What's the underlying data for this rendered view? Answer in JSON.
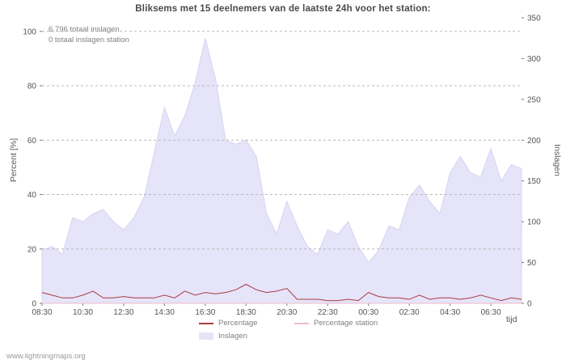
{
  "footer": "www.lightningmaps.org",
  "annotations": {
    "total": "6.796 totaal inslagen",
    "station": "0 totaal inslagen station"
  },
  "colors": {
    "grid": "#b8b8b8",
    "tick_text": "#555555",
    "area_fill": "#e6e4f8",
    "area_stroke": "#d6d4f2",
    "percentage_line": "#a83c46",
    "percentage_station_line": "#f2bcc8"
  },
  "chart_data": {
    "type": "area",
    "title": "Bliksems met 15 deelnemers van de laatste 24h voor het station:",
    "x_axis_label": "tijd",
    "x_tick_labels": [
      "08:30",
      "10:30",
      "12:30",
      "14:30",
      "16:30",
      "18:30",
      "20:30",
      "22:30",
      "00:30",
      "02:30",
      "04:30",
      "06:30"
    ],
    "x_tick_step": 4,
    "n_points": 48,
    "grid": true,
    "legend_position": "bottom",
    "left_axis": {
      "label": "Percent  [%]",
      "range": [
        0,
        105
      ],
      "ticks": [
        0,
        20,
        40,
        60,
        80,
        100
      ]
    },
    "right_axis": {
      "label": "Inslagen",
      "range": [
        0,
        350
      ],
      "ticks": [
        0,
        50,
        100,
        150,
        200,
        250,
        300,
        350
      ]
    },
    "series": [
      {
        "name": "Inslagen",
        "kind": "area",
        "axis": "right",
        "color": "#e6e4f8",
        "values": [
          65,
          70,
          60,
          105,
          100,
          110,
          115,
          100,
          90,
          105,
          130,
          185,
          240,
          205,
          230,
          270,
          325,
          275,
          200,
          195,
          200,
          180,
          110,
          85,
          125,
          95,
          70,
          60,
          90,
          85,
          100,
          70,
          50,
          65,
          95,
          90,
          130,
          145,
          125,
          110,
          160,
          180,
          160,
          155,
          190,
          150,
          170,
          165
        ]
      },
      {
        "name": "Percentage",
        "kind": "line",
        "axis": "left",
        "color": "#a83c46",
        "values": [
          4,
          3,
          2,
          2,
          3,
          4.5,
          2,
          2,
          2.5,
          2,
          2,
          2,
          3,
          2,
          4.5,
          3,
          4,
          3.5,
          4,
          5,
          7,
          5,
          4,
          4.5,
          5.5,
          1.5,
          1.5,
          1.5,
          1,
          1,
          1.5,
          1,
          4,
          2.5,
          2,
          2,
          1.5,
          3,
          1.5,
          2,
          2,
          1.5,
          2,
          3,
          2,
          1,
          2,
          1.5
        ]
      },
      {
        "name": "Percentage station",
        "kind": "line",
        "axis": "left",
        "color": "#f2bcc8",
        "values": [
          0,
          0,
          0,
          0,
          0,
          0,
          0,
          0,
          0,
          0,
          0,
          0,
          0,
          0,
          0,
          0,
          0,
          0,
          0,
          0,
          0,
          0,
          0,
          0,
          0,
          0,
          0,
          0,
          0,
          0,
          0,
          0,
          0,
          0,
          0,
          0,
          0,
          0,
          0,
          0,
          0,
          0,
          0,
          0,
          0,
          0,
          0,
          0
        ]
      }
    ]
  }
}
